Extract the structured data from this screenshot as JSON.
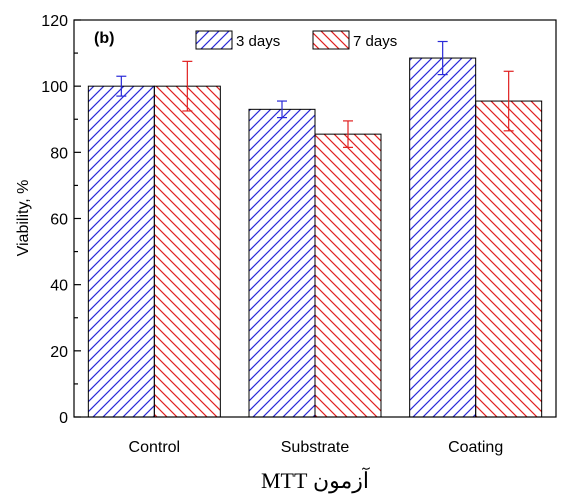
{
  "chart_data": {
    "type": "bar",
    "panel_label": "(b)",
    "categories": [
      "Control",
      "Substrate",
      "Coating"
    ],
    "series": [
      {
        "name": "3 days",
        "values": [
          100,
          93,
          108.5
        ],
        "errors": [
          3,
          2.5,
          5
        ],
        "color": "#2a2ad8"
      },
      {
        "name": "7 days",
        "values": [
          100,
          85.5,
          95.5
        ],
        "errors": [
          7.5,
          4,
          9
        ],
        "color": "#e02020"
      }
    ],
    "xlabel": "آزمون MTT",
    "ylabel": "Viability, %",
    "ylim": [
      0,
      120
    ],
    "yticks": [
      0,
      20,
      40,
      60,
      80,
      100,
      120
    ],
    "legend_position": "top-center",
    "grid": false
  }
}
